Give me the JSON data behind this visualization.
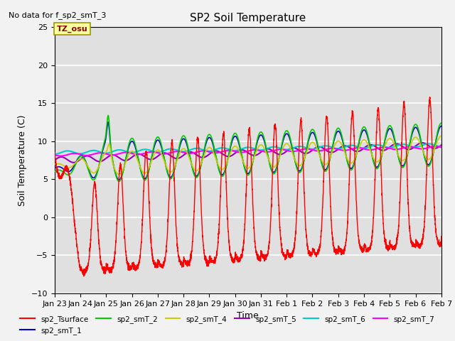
{
  "title": "SP2 Soil Temperature",
  "ylabel": "Soil Temperature (C)",
  "xlabel": "Time",
  "no_data_text": "No data for f_sp2_smT_3",
  "tz_label": "TZ_osu",
  "ylim": [
    -10,
    25
  ],
  "xlim": [
    0,
    360
  ],
  "plot_bg": "#e0e0e0",
  "fig_bg": "#f2f2f2",
  "grid_color": "#ffffff",
  "legend": [
    {
      "label": "sp2_Tsurface",
      "color": "#ff0000"
    },
    {
      "label": "sp2_smT_1",
      "color": "#0000cc"
    },
    {
      "label": "sp2_smT_2",
      "color": "#00cc00"
    },
    {
      "label": "sp2_smT_4",
      "color": "#cccc00"
    },
    {
      "label": "sp2_smT_5",
      "color": "#9900bb"
    },
    {
      "label": "sp2_smT_6",
      "color": "#00cccc"
    },
    {
      "label": "sp2_smT_7",
      "color": "#ff00ff"
    }
  ],
  "xtick_labels": [
    "Jan 23",
    "Jan 24",
    "Jan 25",
    "Jan 26",
    "Jan 27",
    "Jan 28",
    "Jan 29",
    "Jan 30",
    "Jan 31",
    "Feb 1",
    "Feb 2",
    "Feb 3",
    "Feb 4",
    "Feb 5",
    "Feb 6",
    "Feb 7"
  ],
  "xtick_positions": [
    0,
    24,
    48,
    72,
    96,
    120,
    144,
    168,
    192,
    216,
    240,
    264,
    288,
    312,
    336,
    360
  ],
  "ytick_positions": [
    -10,
    -5,
    0,
    5,
    10,
    15,
    20,
    25
  ]
}
